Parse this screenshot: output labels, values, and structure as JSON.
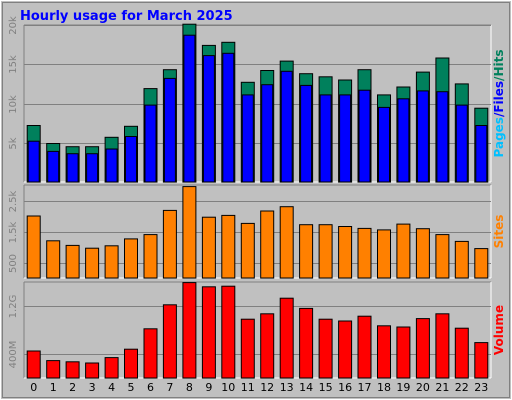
{
  "title": "Hourly usage for March 2025",
  "colors": {
    "background": "#c0c0c0",
    "title": "#0000ff",
    "hits": "#00805c",
    "files": "#0000ff",
    "pages": "#00c0ff",
    "sites": "#ff8000",
    "volume": "#ff0000",
    "grid": "#808080"
  },
  "chart_data": [
    {
      "type": "bar",
      "panel": "hits-files-pages",
      "categories": [
        "0",
        "1",
        "2",
        "3",
        "4",
        "5",
        "6",
        "7",
        "8",
        "9",
        "10",
        "11",
        "12",
        "13",
        "14",
        "15",
        "16",
        "17",
        "18",
        "19",
        "20",
        "21",
        "22",
        "23"
      ],
      "ylim": [
        0,
        20000
      ],
      "yticks": [
        "5k",
        "10k",
        "15k",
        "20k"
      ],
      "ytick_values": [
        5000,
        10000,
        15000,
        20000
      ],
      "ylabel_parts": [
        {
          "text": "Hits",
          "color": "#00805c"
        },
        {
          "text": "/",
          "color": "#00805c"
        },
        {
          "text": "Files",
          "color": "#0000ff"
        },
        {
          "text": "/",
          "color": "#0000ff"
        },
        {
          "text": "Pages",
          "color": "#00c0ff"
        }
      ],
      "series": [
        {
          "name": "Hits",
          "values": [
            7200,
            4900,
            4500,
            4500,
            5700,
            7100,
            11900,
            14300,
            20100,
            17400,
            17800,
            12700,
            14200,
            15400,
            13800,
            13400,
            13000,
            14300,
            11100,
            12100,
            14000,
            15800,
            12500,
            9400
          ]
        },
        {
          "name": "Files",
          "values": [
            5200,
            3900,
            3600,
            3600,
            4200,
            5800,
            9800,
            13200,
            18700,
            16100,
            16400,
            11100,
            12400,
            14100,
            12300,
            11100,
            11100,
            11700,
            9500,
            10600,
            11600,
            11500,
            9800,
            7200
          ]
        }
      ]
    },
    {
      "type": "bar",
      "panel": "sites",
      "categories": [
        "0",
        "1",
        "2",
        "3",
        "4",
        "5",
        "6",
        "7",
        "8",
        "9",
        "10",
        "11",
        "12",
        "13",
        "14",
        "15",
        "16",
        "17",
        "18",
        "19",
        "20",
        "21",
        "22",
        "23"
      ],
      "ylim": [
        0,
        3000
      ],
      "yticks": [
        "500",
        "1.5k",
        "2.5k"
      ],
      "ytick_values": [
        500,
        1500,
        2500
      ],
      "ylabel": "Sites",
      "series": [
        {
          "name": "Sites",
          "values": [
            2000,
            1200,
            1050,
            960,
            1040,
            1260,
            1400,
            2180,
            2950,
            1960,
            2020,
            1760,
            2160,
            2300,
            1720,
            1720,
            1660,
            1600,
            1550,
            1740,
            1590,
            1400,
            1180,
            950
          ]
        }
      ]
    },
    {
      "type": "bar",
      "panel": "volume",
      "categories": [
        "0",
        "1",
        "2",
        "3",
        "4",
        "5",
        "6",
        "7",
        "8",
        "9",
        "10",
        "11",
        "12",
        "13",
        "14",
        "15",
        "16",
        "17",
        "18",
        "19",
        "20",
        "21",
        "22",
        "23"
      ],
      "ylim": [
        0,
        1600
      ],
      "ytick_values": [
        400,
        1200
      ],
      "yticks": [
        "400M",
        "1.2G"
      ],
      "ylabel": "Volume",
      "series": [
        {
          "name": "Volume",
          "values": [
            450,
            290,
            270,
            250,
            340,
            480,
            820,
            1220,
            1590,
            1520,
            1530,
            980,
            1070,
            1330,
            1160,
            980,
            950,
            1030,
            870,
            850,
            990,
            1070,
            830,
            590
          ]
        }
      ]
    }
  ]
}
